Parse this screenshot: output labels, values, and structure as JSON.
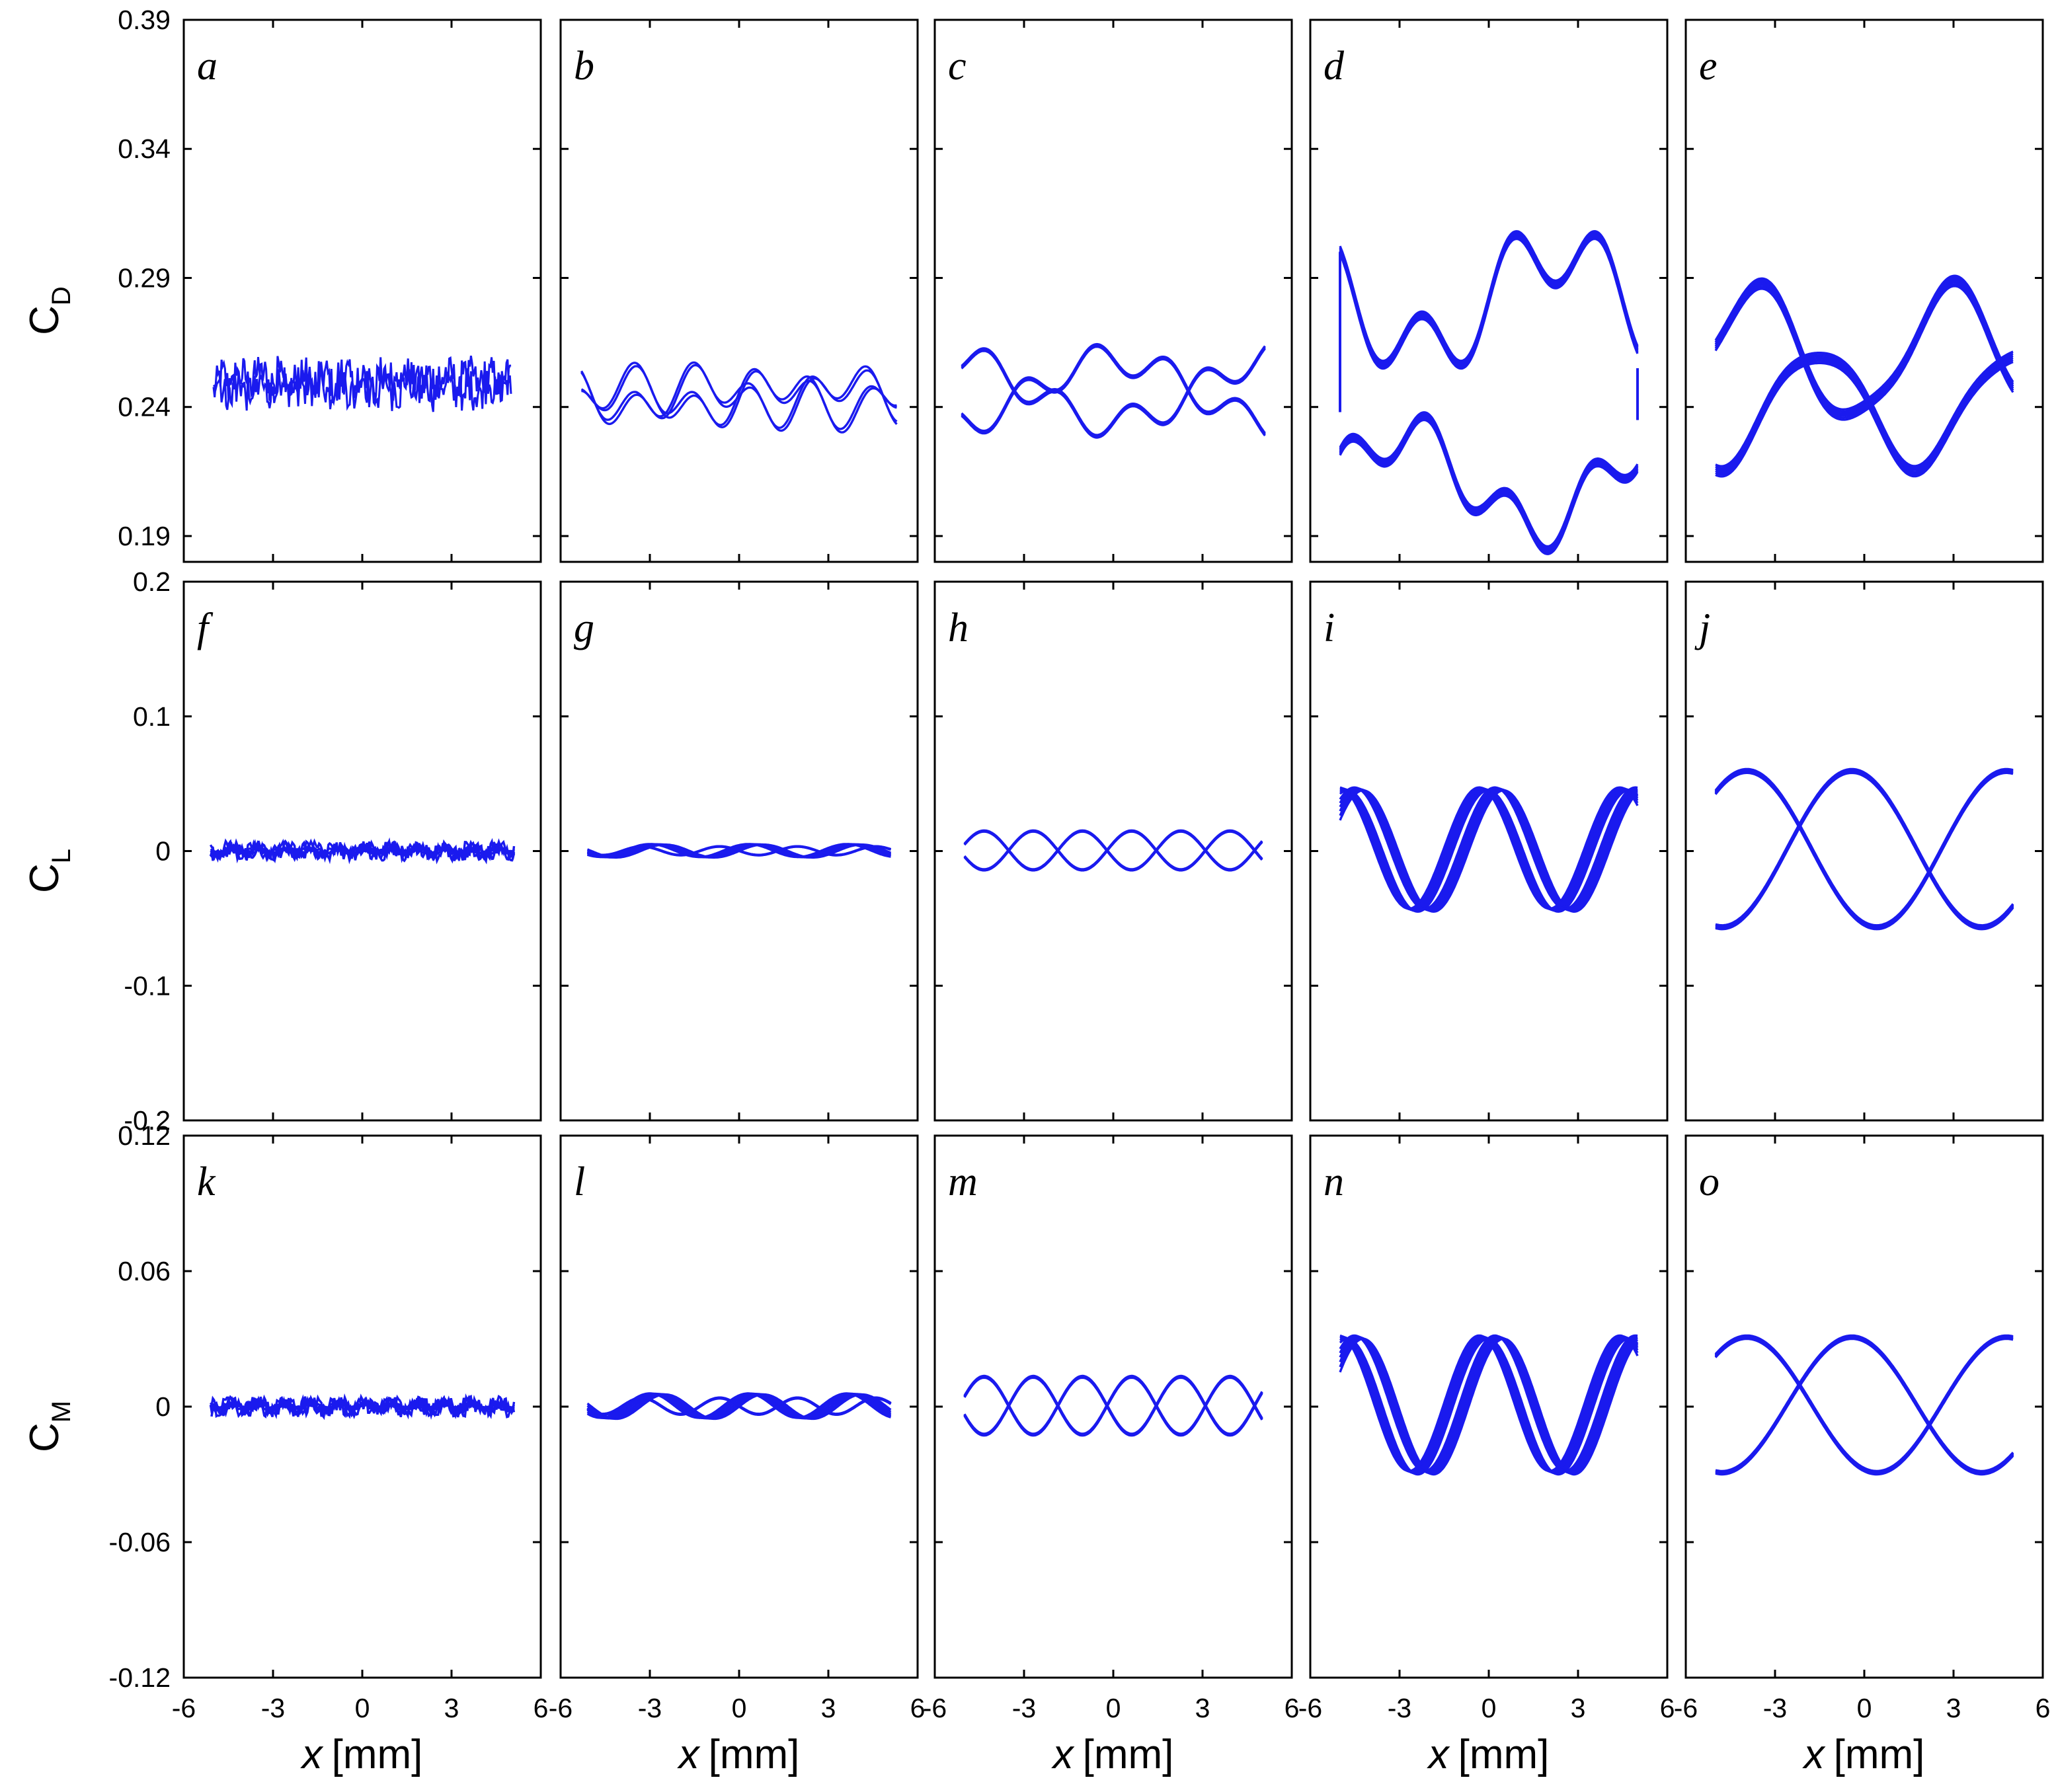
{
  "chart_data": {
    "type": "line",
    "layout": "3x5 grid",
    "line_color": "#1a1aee",
    "xlabel": {
      "var": "x",
      "unit": "[mm]"
    },
    "xticks": [
      "-6",
      "-3",
      "0",
      "3",
      "6"
    ],
    "xlim": [
      -6,
      6
    ],
    "rows": [
      {
        "ylabel": {
          "main": "C",
          "sub": "D"
        },
        "ylim": [
          0.18,
          0.39
        ],
        "yticks": [
          "0.39",
          "0.34",
          "0.29",
          "0.24",
          "0.19"
        ],
        "ytick_values": [
          0.39,
          0.34,
          0.29,
          0.24,
          0.19
        ],
        "panels": [
          {
            "letter": "a",
            "mean": 0.249,
            "description": "noisy band",
            "range": [
              0.24,
              0.262
            ]
          },
          {
            "letter": "b",
            "mean": 0.243,
            "description": "small loop",
            "range": [
              0.231,
              0.257
            ]
          },
          {
            "letter": "c",
            "mean": 0.245,
            "description": "loop",
            "range": [
              0.226,
              0.262
            ]
          },
          {
            "letter": "d",
            "mean": 0.245,
            "description": "large loop",
            "range": [
              0.18,
              0.314
            ]
          },
          {
            "letter": "e",
            "mean": 0.245,
            "description": "large figure-loop",
            "range": [
              0.197,
              0.286
            ]
          }
        ]
      },
      {
        "ylabel": {
          "main": "C",
          "sub": "L"
        },
        "ylim": [
          -0.2,
          0.2
        ],
        "yticks": [
          "0.2",
          "0.1",
          "0",
          "-0.1",
          "-0.2"
        ],
        "ytick_values": [
          0.2,
          0.1,
          0,
          -0.1,
          -0.2
        ],
        "panels": [
          {
            "letter": "f",
            "amplitude": 0.008
          },
          {
            "letter": "g",
            "amplitude": 0.008
          },
          {
            "letter": "h",
            "amplitude": 0.018
          },
          {
            "letter": "i",
            "amplitude": 0.045
          },
          {
            "letter": "j",
            "amplitude": 0.058
          }
        ]
      },
      {
        "ylabel": {
          "main": "C",
          "sub": "M"
        },
        "ylim": [
          -0.12,
          0.12
        ],
        "yticks": [
          "0.12",
          "0.06",
          "0",
          "-0.06",
          "-0.12"
        ],
        "ytick_values": [
          0.12,
          0.06,
          0,
          -0.06,
          -0.12
        ],
        "panels": [
          {
            "letter": "k",
            "amplitude": 0.005
          },
          {
            "letter": "l",
            "amplitude": 0.009
          },
          {
            "letter": "m",
            "amplitude": 0.016
          },
          {
            "letter": "n",
            "amplitude": 0.03
          },
          {
            "letter": "o",
            "amplitude": 0.03
          }
        ]
      }
    ]
  }
}
